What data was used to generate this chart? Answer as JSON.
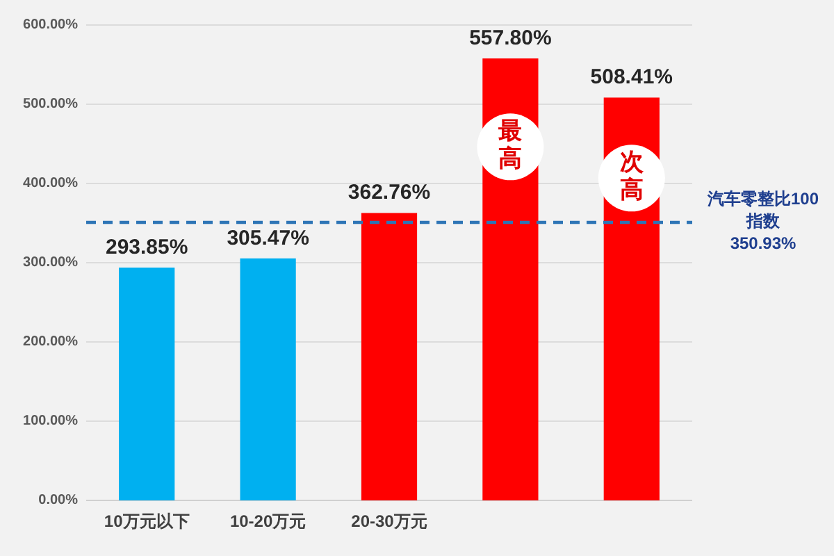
{
  "chart_data": {
    "type": "bar",
    "categories": [
      "10万元以下",
      "10-20万元",
      "20-30万元",
      null,
      null
    ],
    "values": [
      293.85,
      305.47,
      362.76,
      557.8,
      508.41
    ],
    "colors": [
      "#00b0f0",
      "#00b0f0",
      "#ff0000",
      "#ff0000",
      "#ff0000"
    ],
    "value_labels": [
      "293.85%",
      "305.47%",
      "362.76%",
      "557.80%",
      "508.41%"
    ],
    "ylim": [
      0,
      600
    ],
    "yticks": [
      {
        "value": 0,
        "label": "0.00%"
      },
      {
        "value": 100,
        "label": "100.00%"
      },
      {
        "value": 200,
        "label": "200.00%"
      },
      {
        "value": 300,
        "label": "300.00%"
      },
      {
        "value": 400,
        "label": "400.00%"
      },
      {
        "value": 500,
        "label": "500.00%"
      },
      {
        "value": 600,
        "label": "600.00%"
      }
    ],
    "grid": "y",
    "ref_lines": [
      {
        "axis": "y",
        "value": 350.93,
        "label": "汽车零整比100\n指数\n350.93%",
        "color": "#2e75b6",
        "line_style": "dashed"
      }
    ],
    "annotations": [
      "最高",
      "次高"
    ]
  }
}
